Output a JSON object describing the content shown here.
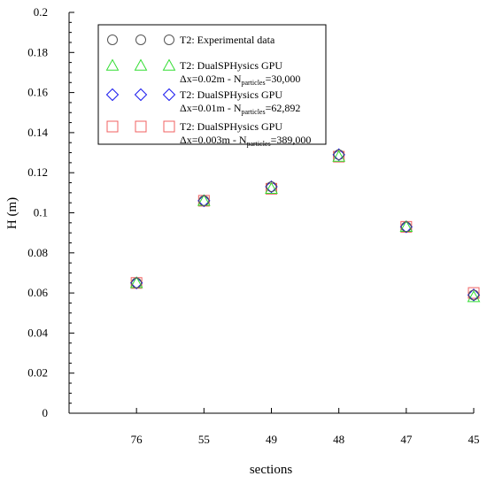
{
  "chart_data": {
    "type": "scatter",
    "xlabel": "sections",
    "ylabel": "H (m)",
    "categories": [
      "76",
      "55",
      "49",
      "48",
      "47",
      "45"
    ],
    "ylim": [
      0,
      0.2
    ],
    "yticks": [
      "0",
      "0.02",
      "0.04",
      "0.06",
      "0.08",
      "0.1",
      "0.12",
      "0.14",
      "0.16",
      "0.18",
      "0.2"
    ],
    "grid": false,
    "legend_position": "top-left",
    "series": [
      {
        "name": "T2: Experimental data",
        "marker": "circle",
        "color": "#555555",
        "values": [
          0.065,
          0.106,
          0.113,
          0.129,
          0.093,
          0.059
        ]
      },
      {
        "name": "T2: DualSPHysics GPU",
        "line2_pre": "Δx=0.02m - N",
        "line2_sub": "particles",
        "line2_post": "=30,000",
        "marker": "triangle",
        "color": "#33dd33",
        "values": [
          0.065,
          0.106,
          0.112,
          0.128,
          0.093,
          0.058
        ]
      },
      {
        "name": "T2: DualSPHysics GPU",
        "line2_pre": "Δx=0.01m - N",
        "line2_sub": "particles",
        "line2_post": "=62,892",
        "marker": "diamond",
        "color": "#1a1aee",
        "values": [
          0.065,
          0.106,
          0.113,
          0.129,
          0.093,
          0.059
        ]
      },
      {
        "name": "T2: DualSPHysics GPU",
        "line2_pre": "Δx=0.003m - N",
        "line2_sub": "particles",
        "line2_post": "=389,000",
        "marker": "square",
        "color": "#f06060",
        "values": [
          0.065,
          0.106,
          0.112,
          0.128,
          0.093,
          0.06
        ]
      }
    ]
  }
}
